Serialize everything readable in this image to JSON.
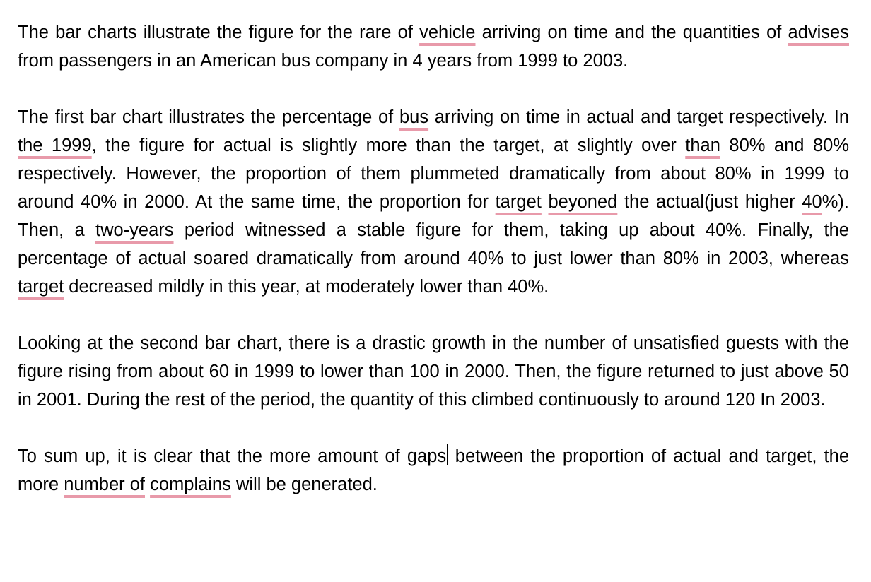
{
  "colors": {
    "text": "#000000",
    "spelling_underline": "#e89aaa",
    "background": "#ffffff"
  },
  "paragraphs": [
    [
      {
        "t": "The bar charts illustrate the figure for the rare of "
      },
      {
        "t": "vehicle",
        "err": true
      },
      {
        "t": " arriving on time and the quantities of "
      },
      {
        "t": "advises",
        "err": true
      },
      {
        "t": " from passengers in an American bus company in 4 years from 1999 to 2003."
      }
    ],
    [
      {
        "t": "The first bar chart illustrates the percentage of "
      },
      {
        "t": "bus",
        "err": true
      },
      {
        "t": " arriving on time in actual and target respectively. In "
      },
      {
        "t": "the 1999",
        "err": true
      },
      {
        "t": ", the figure for actual is slightly more than the target, at slightly over "
      },
      {
        "t": "than",
        "err": true
      },
      {
        "t": " 80% and 80% respectively. However, the proportion of them plummeted dramatically from about 80% in 1999 to around 40% in 2000. At the same time, the proportion for "
      },
      {
        "t": "target",
        "err": true
      },
      {
        "t": " "
      },
      {
        "t": "beyoned",
        "err": true
      },
      {
        "t": " the actual(just higher "
      },
      {
        "t": "40",
        "err": true
      },
      {
        "t": "%). Then, a "
      },
      {
        "t": "two-years",
        "err": true
      },
      {
        "t": " period witnessed a stable figure for them, taking up about 40%. Finally, the percentage of actual soared dramatically from around 40% to just lower than 80% in 2003, whereas "
      },
      {
        "t": "target",
        "err": true
      },
      {
        "t": " decreased mildly in this year, at moderately lower than 40%."
      }
    ],
    [
      {
        "t": "Looking at the second bar chart, there is a drastic growth in the number of unsatisfied guests with the figure rising from about 60 in 1999 to lower than 100 in 2000. Then, the figure returned to just above 50 in 2001. During the rest of the period, the quantity of this climbed continuously to around 120 In 2003."
      }
    ],
    [
      {
        "t": "To sum up, it is clear that the more amount of gaps"
      },
      {
        "caret": true
      },
      {
        "t": " between the proportion of actual and target, the more "
      },
      {
        "t": "number of",
        "err": true
      },
      {
        "t": " "
      },
      {
        "t": "complains",
        "err": true
      },
      {
        "t": " will be generated."
      }
    ]
  ]
}
